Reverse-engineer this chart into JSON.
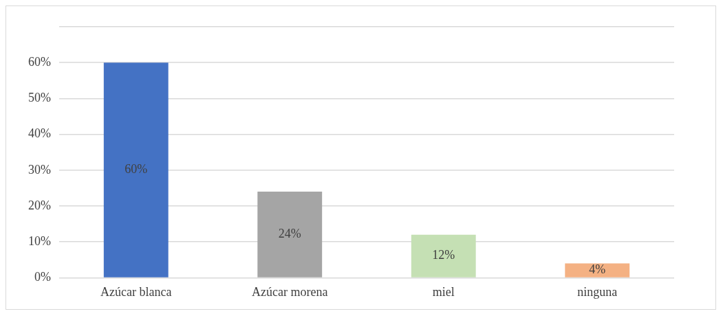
{
  "chart_data": {
    "type": "bar",
    "categories": [
      "Azúcar blanca",
      "Azúcar morena",
      "miel",
      "ninguna"
    ],
    "values": [
      60,
      24,
      12,
      4
    ],
    "colors": [
      "#4472c4",
      "#a5a5a5",
      "#c5e0b4",
      "#f4b183"
    ],
    "value_labels": [
      "60%",
      "24%",
      "12%",
      "4%"
    ],
    "ylim": [
      0,
      70
    ],
    "yticks": [
      {
        "value": 0,
        "label": "0%"
      },
      {
        "value": 10,
        "label": "10%"
      },
      {
        "value": 20,
        "label": "20%"
      },
      {
        "value": 30,
        "label": "30%"
      },
      {
        "value": 40,
        "label": "40%"
      },
      {
        "value": 50,
        "label": "50%"
      },
      {
        "value": 60,
        "label": "60%"
      },
      {
        "value": 70,
        "label": null
      }
    ],
    "grid": "y"
  }
}
